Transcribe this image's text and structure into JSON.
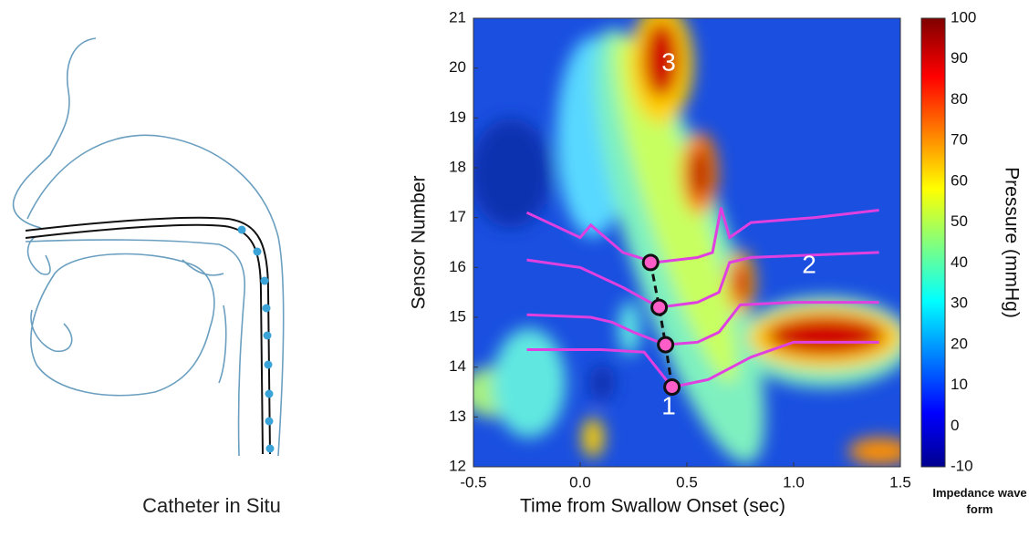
{
  "diagram": {
    "caption": "Catheter in Situ"
  },
  "chart_data": {
    "type": "heatmap",
    "xlabel": "Time from Swallow Onset (sec)",
    "ylabel": "Sensor Number",
    "xlim": [
      -0.5,
      1.5
    ],
    "xticks": [
      -0.5,
      {
        "value": 0,
        "label": "0.0"
      },
      0.5,
      {
        "value": 1,
        "label": "1.0"
      },
      1.5
    ],
    "ylim": [
      12,
      21
    ],
    "yticks": [
      12,
      13,
      14,
      15,
      16,
      17,
      18,
      19,
      20,
      21
    ],
    "colorbar": {
      "label": "Pressure (mmHg)",
      "lim": [
        -10,
        100
      ],
      "ticks": [
        -10,
        0,
        10,
        20,
        30,
        40,
        50,
        60,
        70,
        80,
        90,
        100
      ]
    },
    "impedance_label": "Impedance wave form",
    "curve_color": "#e040e0",
    "impedance_curves": [
      {
        "x": [
          -0.25,
          0.0,
          0.05,
          0.2,
          0.35,
          0.55,
          0.62,
          0.66,
          0.7,
          0.8,
          1.1,
          1.4
        ],
        "y": [
          17.1,
          16.6,
          16.85,
          16.3,
          16.1,
          16.2,
          16.3,
          17.2,
          16.6,
          16.9,
          17.0,
          17.15
        ]
      },
      {
        "x": [
          -0.25,
          0.0,
          0.2,
          0.37,
          0.55,
          0.65,
          0.7,
          0.8,
          1.1,
          1.4
        ],
        "y": [
          16.15,
          16.0,
          15.6,
          15.2,
          15.3,
          15.5,
          16.1,
          16.2,
          16.25,
          16.3
        ]
      },
      {
        "x": [
          -0.25,
          0.05,
          0.15,
          0.25,
          0.4,
          0.55,
          0.65,
          0.75,
          1.0,
          1.4
        ],
        "y": [
          15.05,
          15.0,
          14.9,
          14.7,
          14.45,
          14.5,
          14.7,
          15.25,
          15.3,
          15.3
        ]
      },
      {
        "x": [
          -0.25,
          0.1,
          0.3,
          0.43,
          0.6,
          0.8,
          1.0,
          1.4
        ],
        "y": [
          14.35,
          14.35,
          14.3,
          13.6,
          13.75,
          14.2,
          14.5,
          14.5
        ]
      }
    ],
    "markers": {
      "x": [
        0.33,
        0.37,
        0.4,
        0.43
      ],
      "y": [
        16.1,
        15.2,
        14.45,
        13.6
      ]
    },
    "annotations": [
      "1",
      "2",
      "3"
    ]
  }
}
